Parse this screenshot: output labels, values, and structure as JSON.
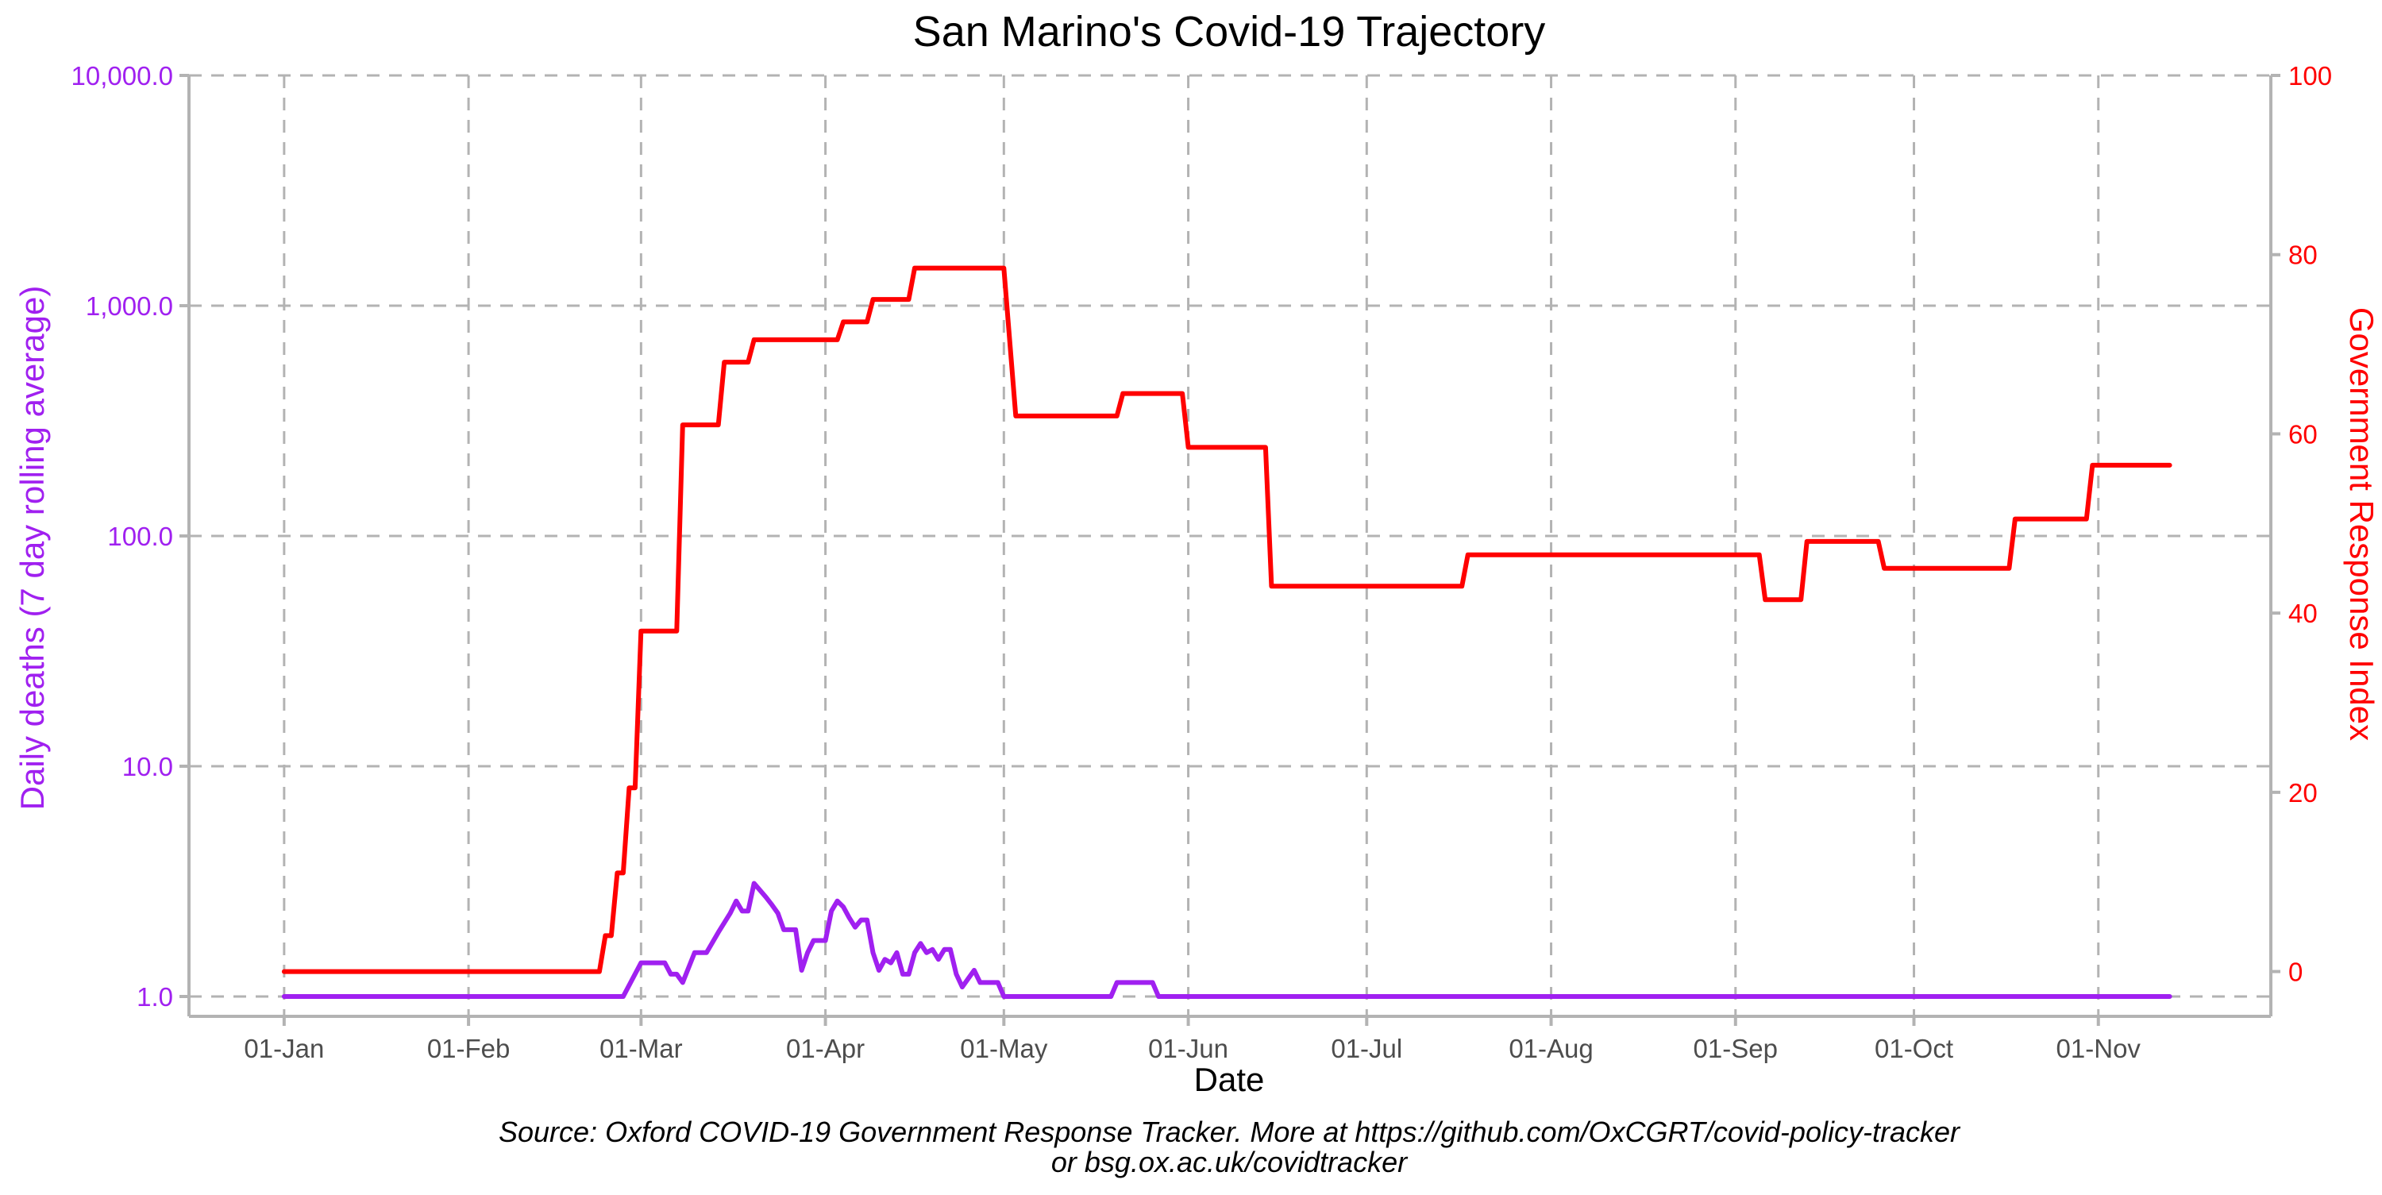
{
  "chart_data": {
    "type": "line",
    "title": "San Marino's Covid-19 Trajectory",
    "xlabel": "Date",
    "ylabel_left": "Daily deaths (7 day rolling average)",
    "ylabel_right": "Government Response Index",
    "caption_line1": "Source: Oxford COVID-19 Government Response Tracker. More at https://github.com/OxCGRT/covid-policy-tracker",
    "caption_line2": "or bsg.ox.ac.uk/covidtracker",
    "x_ticks": [
      "01-Jan",
      "01-Feb",
      "01-Mar",
      "01-Apr",
      "01-May",
      "01-Jun",
      "01-Jul",
      "01-Aug",
      "01-Sep",
      "01-Oct",
      "01-Nov"
    ],
    "x_tick_dates": [
      "2020-01-01",
      "2020-02-01",
      "2020-03-01",
      "2020-04-01",
      "2020-05-01",
      "2020-06-01",
      "2020-07-01",
      "2020-08-01",
      "2020-09-01",
      "2020-10-01",
      "2020-11-01"
    ],
    "x_range": [
      "2019-12-16",
      "2020-11-30"
    ],
    "y_left": {
      "scale": "log10",
      "range": [
        0.82,
        10000
      ],
      "ticks": [
        1,
        10,
        100,
        1000,
        10000
      ],
      "tick_labels": [
        "1.0",
        "10.0",
        "100.0",
        "1,000.0",
        "10,000.0"
      ],
      "color": "#a020f0"
    },
    "y_right": {
      "scale": "linear",
      "range": [
        -5,
        100
      ],
      "ticks": [
        0,
        20,
        40,
        60,
        80,
        100
      ],
      "tick_labels": [
        "0",
        "20",
        "40",
        "60",
        "80",
        "100"
      ],
      "color": "#ff0000"
    },
    "grid": true,
    "series": [
      {
        "axis": "right",
        "color": "#ff0000",
        "points": [
          [
            "2020-01-01",
            0
          ],
          [
            "2020-02-23",
            0
          ],
          [
            "2020-02-24",
            4
          ],
          [
            "2020-02-25",
            4
          ],
          [
            "2020-02-26",
            11
          ],
          [
            "2020-02-27",
            11
          ],
          [
            "2020-02-28",
            20.5
          ],
          [
            "2020-02-29",
            20.5
          ],
          [
            "2020-03-01",
            38
          ],
          [
            "2020-03-07",
            38
          ],
          [
            "2020-03-08",
            61
          ],
          [
            "2020-03-14",
            61
          ],
          [
            "2020-03-15",
            68
          ],
          [
            "2020-03-19",
            68
          ],
          [
            "2020-03-20",
            70.5
          ],
          [
            "2020-04-03",
            70.5
          ],
          [
            "2020-04-04",
            72.5
          ],
          [
            "2020-04-08",
            72.5
          ],
          [
            "2020-04-09",
            75
          ],
          [
            "2020-04-15",
            75
          ],
          [
            "2020-04-16",
            78.5
          ],
          [
            "2020-05-01",
            78.5
          ],
          [
            "2020-05-03",
            62
          ],
          [
            "2020-05-20",
            62
          ],
          [
            "2020-05-21",
            64.5
          ],
          [
            "2020-05-31",
            64.5
          ],
          [
            "2020-06-01",
            58.5
          ],
          [
            "2020-06-14",
            58.5
          ],
          [
            "2020-06-15",
            43
          ],
          [
            "2020-07-17",
            43
          ],
          [
            "2020-07-18",
            46.5
          ],
          [
            "2020-09-05",
            46.5
          ],
          [
            "2020-09-06",
            41.5
          ],
          [
            "2020-09-12",
            41.5
          ],
          [
            "2020-09-13",
            48
          ],
          [
            "2020-09-25",
            48
          ],
          [
            "2020-09-26",
            45
          ],
          [
            "2020-10-17",
            45
          ],
          [
            "2020-10-18",
            50.5
          ],
          [
            "2020-10-30",
            50.5
          ],
          [
            "2020-10-31",
            56.5
          ],
          [
            "2020-11-13",
            56.5
          ]
        ]
      },
      {
        "axis": "left",
        "color": "#a020f0",
        "points": [
          [
            "2020-01-01",
            1
          ],
          [
            "2020-02-27",
            1
          ],
          [
            "2020-03-01",
            1.4
          ],
          [
            "2020-03-05",
            1.4
          ],
          [
            "2020-03-06",
            1.25
          ],
          [
            "2020-03-07",
            1.25
          ],
          [
            "2020-03-08",
            1.15
          ],
          [
            "2020-03-10",
            1.55
          ],
          [
            "2020-03-12",
            1.55
          ],
          [
            "2020-03-14",
            1.9
          ],
          [
            "2020-03-16",
            2.3
          ],
          [
            "2020-03-17",
            2.6
          ],
          [
            "2020-03-18",
            2.35
          ],
          [
            "2020-03-19",
            2.35
          ],
          [
            "2020-03-20",
            3.1
          ],
          [
            "2020-03-22",
            2.7
          ],
          [
            "2020-03-23",
            2.5
          ],
          [
            "2020-03-24",
            2.3
          ],
          [
            "2020-03-25",
            1.95
          ],
          [
            "2020-03-27",
            1.95
          ],
          [
            "2020-03-28",
            1.3
          ],
          [
            "2020-03-29",
            1.55
          ],
          [
            "2020-03-30",
            1.75
          ],
          [
            "2020-04-01",
            1.75
          ],
          [
            "2020-04-02",
            2.35
          ],
          [
            "2020-04-03",
            2.6
          ],
          [
            "2020-04-04",
            2.45
          ],
          [
            "2020-04-05",
            2.2
          ],
          [
            "2020-04-06",
            2.0
          ],
          [
            "2020-04-07",
            2.15
          ],
          [
            "2020-04-08",
            2.15
          ],
          [
            "2020-04-09",
            1.55
          ],
          [
            "2020-04-10",
            1.3
          ],
          [
            "2020-04-11",
            1.45
          ],
          [
            "2020-04-12",
            1.4
          ],
          [
            "2020-04-13",
            1.55
          ],
          [
            "2020-04-14",
            1.25
          ],
          [
            "2020-04-15",
            1.25
          ],
          [
            "2020-04-16",
            1.55
          ],
          [
            "2020-04-17",
            1.7
          ],
          [
            "2020-04-18",
            1.55
          ],
          [
            "2020-04-19",
            1.6
          ],
          [
            "2020-04-20",
            1.45
          ],
          [
            "2020-04-21",
            1.6
          ],
          [
            "2020-04-22",
            1.6
          ],
          [
            "2020-04-23",
            1.25
          ],
          [
            "2020-04-24",
            1.1
          ],
          [
            "2020-04-26",
            1.3
          ],
          [
            "2020-04-27",
            1.15
          ],
          [
            "2020-04-30",
            1.15
          ],
          [
            "2020-05-01",
            1
          ],
          [
            "2020-05-19",
            1
          ],
          [
            "2020-05-20",
            1.15
          ],
          [
            "2020-05-26",
            1.15
          ],
          [
            "2020-05-27",
            1
          ],
          [
            "2020-11-13",
            1
          ]
        ]
      }
    ]
  }
}
